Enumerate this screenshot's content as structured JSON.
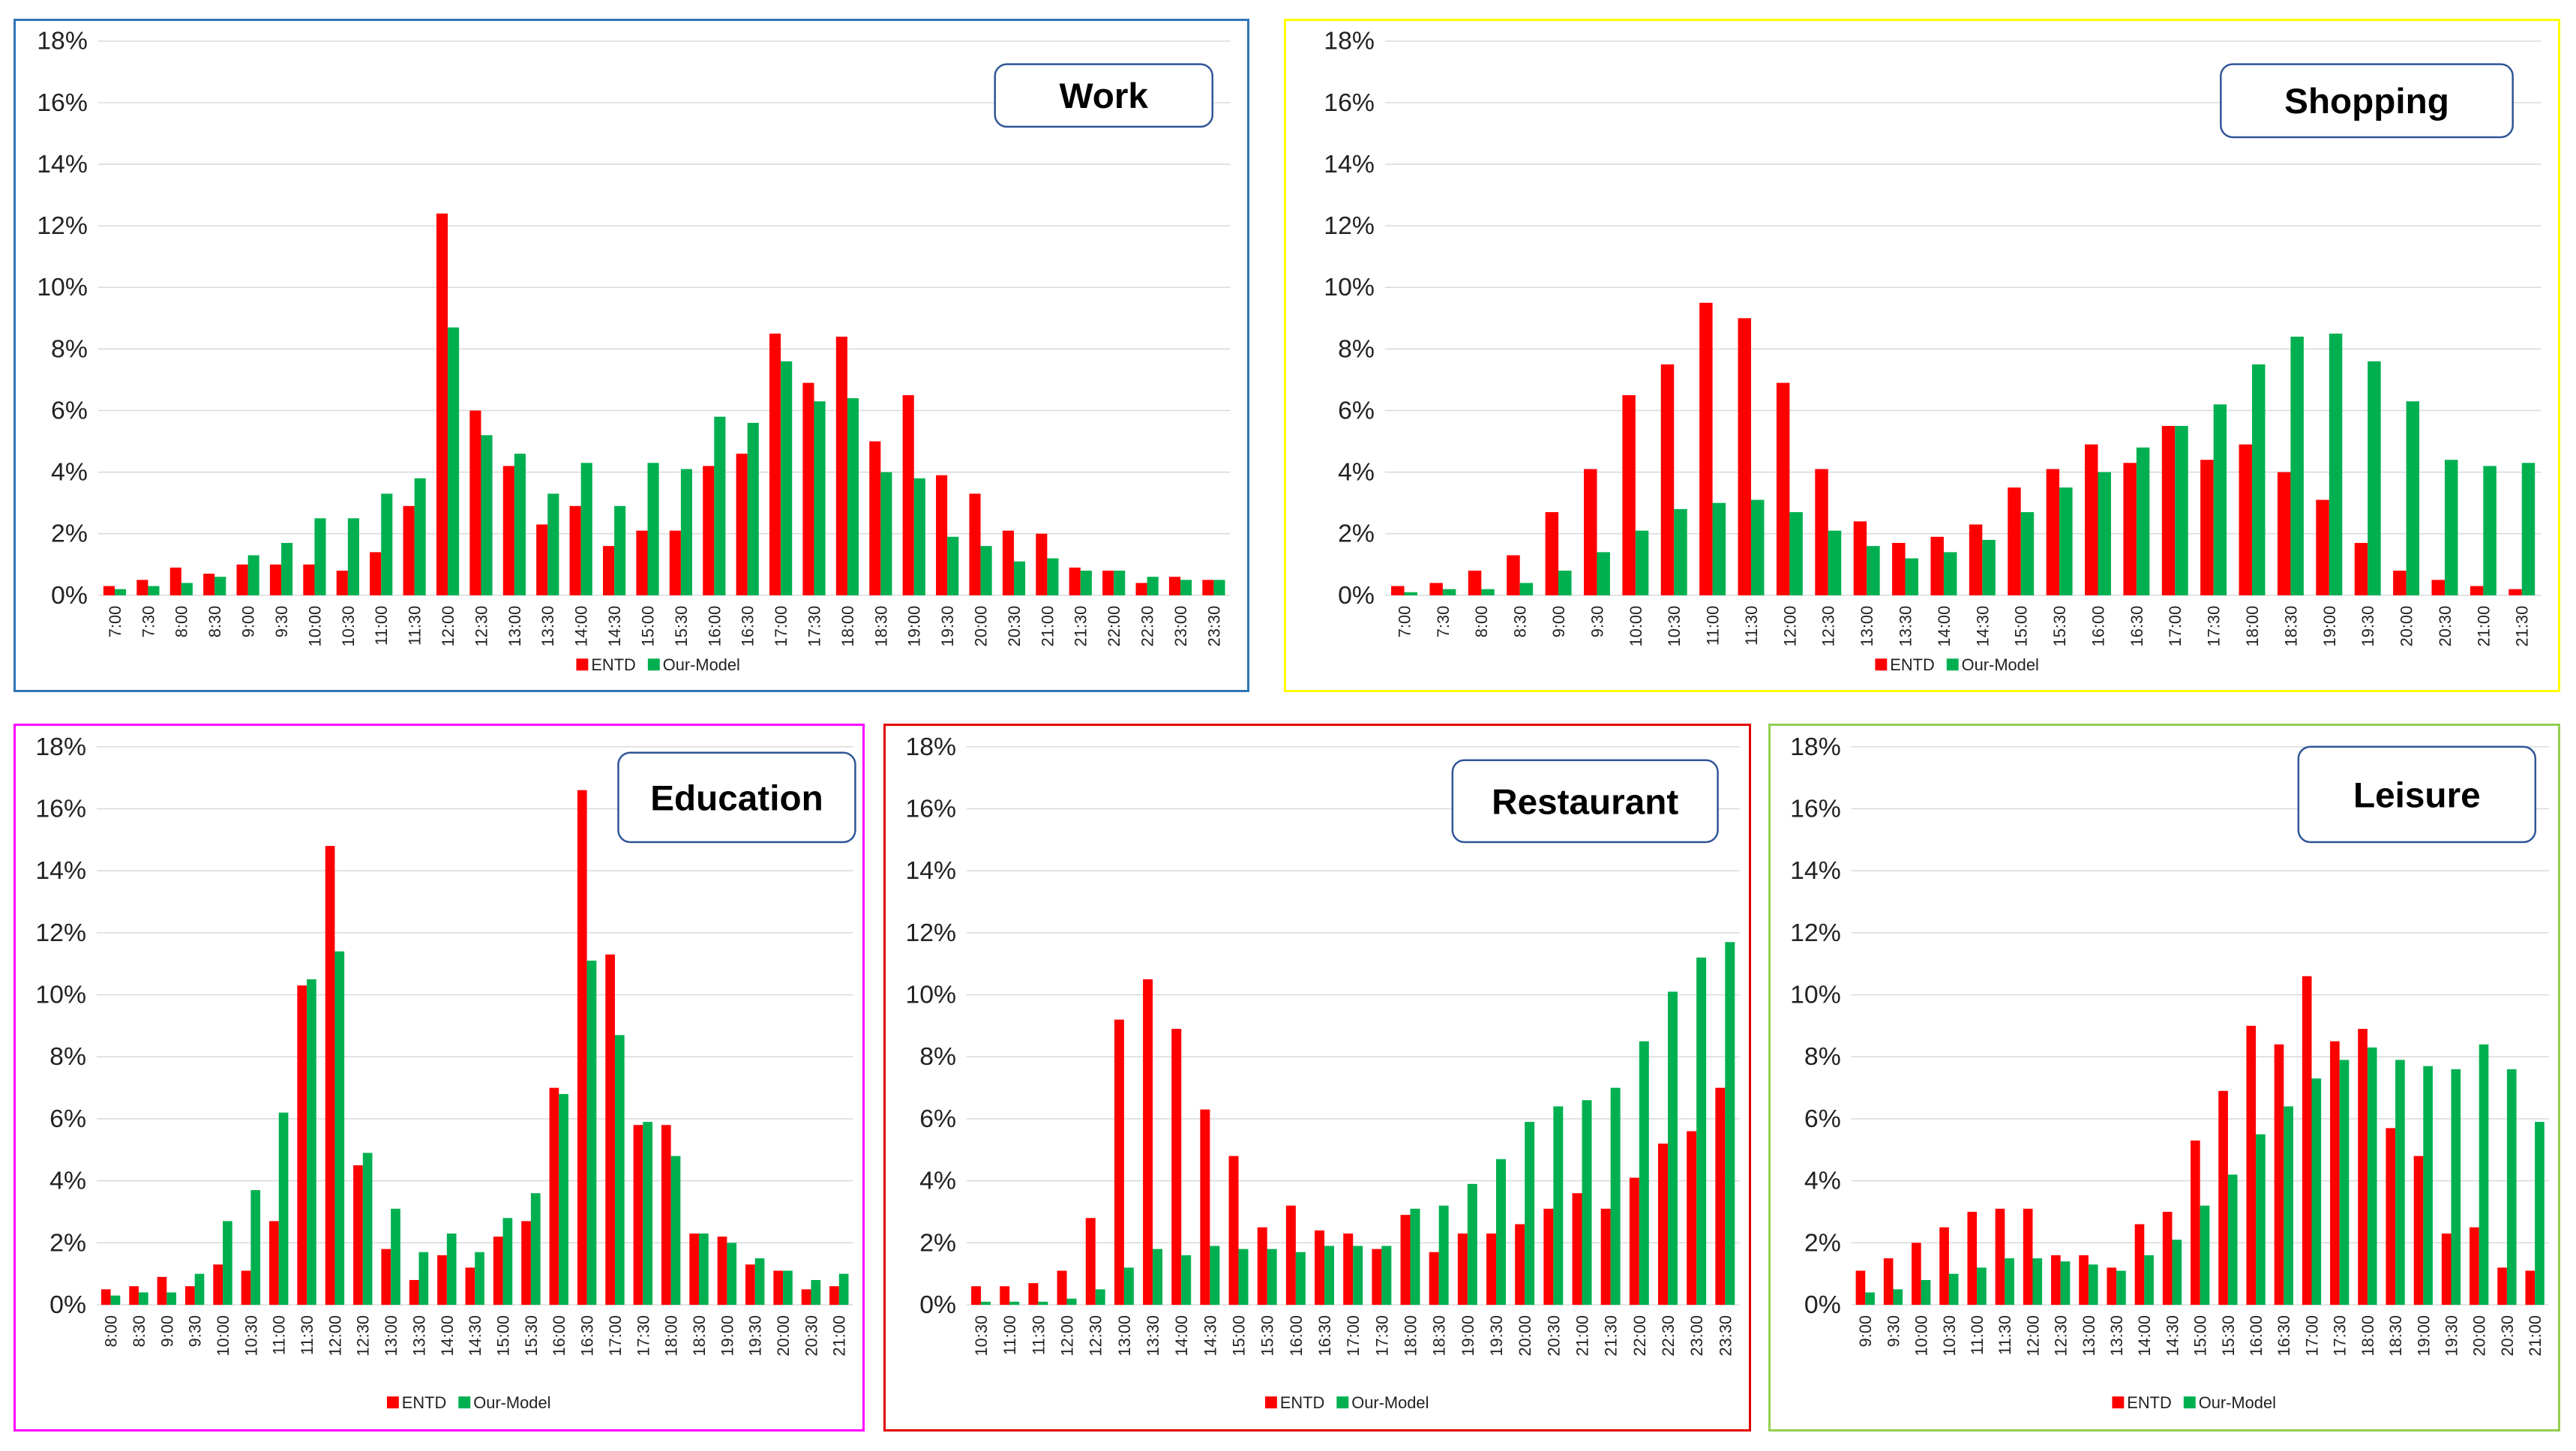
{
  "colors": {
    "entd": "#ff0000",
    "model": "#00b050"
  },
  "legend": {
    "entd": "ENTD",
    "model": "Our-Model"
  },
  "y_ticks": [
    "0%",
    "2%",
    "4%",
    "6%",
    "8%",
    "10%",
    "12%",
    "14%",
    "16%",
    "18%"
  ],
  "chart_data": [
    {
      "type": "bar",
      "title": "Work",
      "border_color": "#2e75b6",
      "ylim": [
        0,
        18
      ],
      "categories": [
        "7:00",
        "7:30",
        "8:00",
        "8:30",
        "9:00",
        "9:30",
        "10:00",
        "10:30",
        "11:00",
        "11:30",
        "12:00",
        "12:30",
        "13:00",
        "13:30",
        "14:00",
        "14:30",
        "15:00",
        "15:30",
        "16:00",
        "16:30",
        "17:00",
        "17:30",
        "18:00",
        "18:30",
        "19:00",
        "19:30",
        "20:00",
        "20:30",
        "21:00",
        "21:30",
        "22:00",
        "22:30",
        "23:00",
        "23:30"
      ],
      "series": [
        {
          "name": "ENTD",
          "values": [
            0.3,
            0.5,
            0.9,
            0.7,
            1.0,
            1.0,
            1.0,
            0.8,
            1.4,
            2.9,
            12.4,
            6.0,
            4.2,
            2.3,
            2.9,
            1.6,
            2.1,
            2.1,
            4.2,
            4.6,
            8.5,
            6.9,
            8.4,
            5.0,
            6.5,
            3.9,
            3.3,
            2.1,
            2.0,
            0.9,
            0.8,
            0.4,
            0.6,
            0.5
          ]
        },
        {
          "name": "Our-Model",
          "values": [
            0.2,
            0.3,
            0.4,
            0.6,
            1.3,
            1.7,
            2.5,
            2.5,
            3.3,
            3.8,
            8.7,
            5.2,
            4.6,
            3.3,
            4.3,
            2.9,
            4.3,
            4.1,
            5.8,
            5.6,
            7.6,
            6.3,
            6.4,
            4.0,
            3.8,
            1.9,
            1.6,
            1.1,
            1.2,
            0.8,
            0.8,
            0.6,
            0.5,
            0.5
          ]
        }
      ]
    },
    {
      "type": "bar",
      "title": "Shopping",
      "border_color": "#ffff00",
      "ylim": [
        0,
        18
      ],
      "categories": [
        "7:00",
        "7:30",
        "8:00",
        "8:30",
        "9:00",
        "9:30",
        "10:00",
        "10:30",
        "11:00",
        "11:30",
        "12:00",
        "12:30",
        "13:00",
        "13:30",
        "14:00",
        "14:30",
        "15:00",
        "15:30",
        "16:00",
        "16:30",
        "17:00",
        "17:30",
        "18:00",
        "18:30",
        "19:00",
        "19:30",
        "20:00",
        "20:30",
        "21:00",
        "21:30"
      ],
      "series": [
        {
          "name": "ENTD",
          "values": [
            0.3,
            0.4,
            0.8,
            1.3,
            2.7,
            4.1,
            6.5,
            7.5,
            9.5,
            9.0,
            6.9,
            4.1,
            2.4,
            1.7,
            1.9,
            2.3,
            3.5,
            4.1,
            4.9,
            4.3,
            5.5,
            4.4,
            4.9,
            4.0,
            3.1,
            1.7,
            0.8,
            0.5,
            0.3,
            0.2
          ]
        },
        {
          "name": "Our-Model",
          "values": [
            0.1,
            0.2,
            0.2,
            0.4,
            0.8,
            1.4,
            2.1,
            2.8,
            3.0,
            3.1,
            2.7,
            2.1,
            1.6,
            1.2,
            1.4,
            1.8,
            2.7,
            3.5,
            4.0,
            4.8,
            5.5,
            6.2,
            7.5,
            8.4,
            8.5,
            7.6,
            6.3,
            4.4,
            4.2,
            4.3
          ]
        }
      ]
    },
    {
      "type": "bar",
      "title": "Education",
      "border_color": "#ff00ff",
      "ylim": [
        0,
        18
      ],
      "categories": [
        "8:00",
        "8:30",
        "9:00",
        "9:30",
        "10:00",
        "10:30",
        "11:00",
        "11:30",
        "12:00",
        "12:30",
        "13:00",
        "13:30",
        "14:00",
        "14:30",
        "15:00",
        "15:30",
        "16:00",
        "16:30",
        "17:00",
        "17:30",
        "18:00",
        "18:30",
        "19:00",
        "19:30",
        "20:00",
        "20:30",
        "21:00"
      ],
      "series": [
        {
          "name": "ENTD",
          "values": [
            0.5,
            0.6,
            0.9,
            0.6,
            1.3,
            1.1,
            2.7,
            10.3,
            14.8,
            4.5,
            1.8,
            0.8,
            1.6,
            1.2,
            2.2,
            2.7,
            7.0,
            16.6,
            11.3,
            5.8,
            5.8,
            2.3,
            2.2,
            1.3,
            1.1,
            0.5,
            0.6
          ]
        },
        {
          "name": "Our-Model",
          "values": [
            0.3,
            0.4,
            0.4,
            1.0,
            2.7,
            3.7,
            6.2,
            10.5,
            11.4,
            4.9,
            3.1,
            1.7,
            2.3,
            1.7,
            2.8,
            3.6,
            6.8,
            11.1,
            8.7,
            5.9,
            4.8,
            2.3,
            2.0,
            1.5,
            1.1,
            0.8,
            1.0
          ]
        }
      ]
    },
    {
      "type": "bar",
      "title": "Restaurant",
      "border_color": "#e00000",
      "ylim": [
        0,
        18
      ],
      "categories": [
        "10:30",
        "11:00",
        "11:30",
        "12:00",
        "12:30",
        "13:00",
        "13:30",
        "14:00",
        "14:30",
        "15:00",
        "15:30",
        "16:00",
        "16:30",
        "17:00",
        "17:30",
        "18:00",
        "18:30",
        "19:00",
        "19:30",
        "20:00",
        "20:30",
        "21:00",
        "21:30",
        "22:00",
        "22:30",
        "23:00",
        "23:30"
      ],
      "series": [
        {
          "name": "ENTD",
          "values": [
            0.6,
            0.6,
            0.7,
            1.1,
            2.8,
            9.2,
            10.5,
            8.9,
            6.3,
            4.8,
            2.5,
            3.2,
            2.4,
            2.3,
            1.8,
            2.9,
            1.7,
            2.3,
            2.3,
            2.6,
            3.1,
            3.6,
            3.1,
            4.1,
            5.2,
            5.6,
            7.0
          ]
        },
        {
          "name": "Our-Model",
          "values": [
            0.1,
            0.1,
            0.1,
            0.2,
            0.5,
            1.2,
            1.8,
            1.6,
            1.9,
            1.8,
            1.8,
            1.7,
            1.9,
            1.9,
            1.9,
            3.1,
            3.2,
            3.9,
            4.7,
            5.9,
            6.4,
            6.6,
            7.0,
            8.5,
            10.1,
            11.2,
            11.7
          ]
        }
      ]
    },
    {
      "type": "bar",
      "title": "Leisure",
      "border_color": "#92d050",
      "ylim": [
        0,
        18
      ],
      "categories": [
        "9:00",
        "9:30",
        "10:00",
        "10:30",
        "11:00",
        "11:30",
        "12:00",
        "12:30",
        "13:00",
        "13:30",
        "14:00",
        "14:30",
        "15:00",
        "15:30",
        "16:00",
        "16:30",
        "17:00",
        "17:30",
        "18:00",
        "18:30",
        "19:00",
        "19:30",
        "20:00",
        "20:30",
        "21:00"
      ],
      "series": [
        {
          "name": "ENTD",
          "values": [
            1.1,
            1.5,
            2.0,
            2.5,
            3.0,
            3.1,
            3.1,
            1.6,
            1.6,
            1.2,
            2.6,
            3.0,
            5.3,
            6.9,
            9.0,
            8.4,
            10.6,
            8.5,
            8.9,
            5.7,
            4.8,
            2.3,
            2.5,
            1.2,
            1.1
          ]
        },
        {
          "name": "Our-Model",
          "values": [
            0.4,
            0.5,
            0.8,
            1.0,
            1.2,
            1.5,
            1.5,
            1.4,
            1.3,
            1.1,
            1.6,
            2.1,
            3.2,
            4.2,
            5.5,
            6.4,
            7.3,
            7.9,
            8.3,
            7.9,
            7.7,
            7.6,
            8.4,
            7.6,
            5.9
          ]
        }
      ]
    }
  ]
}
